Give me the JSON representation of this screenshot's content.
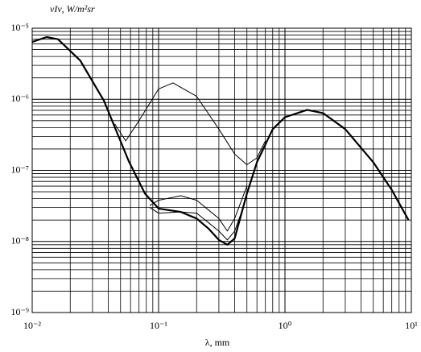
{
  "chart_data": {
    "type": "line",
    "ylabel": "νIν, W/m²sr",
    "xlabel": "λ, mm",
    "xscale": "log",
    "yscale": "log",
    "grid": true,
    "xlim": [
      0.01,
      10
    ],
    "ylim": [
      1e-09,
      1e-05
    ],
    "xticks": [
      {
        "value": 0.01,
        "label": "10⁻²"
      },
      {
        "value": 0.1,
        "label": "10⁻¹"
      },
      {
        "value": 1,
        "label": "10⁰"
      },
      {
        "value": 10,
        "label": "10¹"
      }
    ],
    "yticks": [
      {
        "value": 1e-09,
        "label": "10⁻⁹"
      },
      {
        "value": 1e-08,
        "label": "10⁻⁸"
      },
      {
        "value": 1e-07,
        "label": "10⁻⁷"
      },
      {
        "value": 1e-06,
        "label": "10⁻⁶"
      },
      {
        "value": 1e-05,
        "label": "10⁻⁵"
      }
    ],
    "xminorticks": [
      0.02,
      0.03,
      0.04,
      0.05,
      0.06,
      0.07,
      0.08,
      0.09,
      0.2,
      0.3,
      0.4,
      0.5,
      0.6,
      0.7,
      0.8,
      0.9,
      2,
      3,
      4,
      5,
      6,
      7,
      8,
      9
    ],
    "yminorticks": [
      2e-09,
      3e-09,
      4e-09,
      5e-09,
      6e-09,
      7e-09,
      8e-09,
      9e-09,
      2e-08,
      3e-08,
      4e-08,
      5e-08,
      6e-08,
      7e-08,
      8e-08,
      9e-08,
      2e-07,
      3e-07,
      4e-07,
      5e-07,
      6e-07,
      7e-07,
      8e-07,
      9e-07,
      2e-06,
      3e-06,
      4e-06,
      5e-06,
      6e-06,
      7e-06,
      8e-06,
      9e-06
    ],
    "series": [
      {
        "color": "#000000",
        "width": 2.2,
        "x": [
          0.01,
          0.013,
          0.016,
          0.024,
          0.037,
          0.058,
          0.078,
          0.1,
          0.15,
          0.2,
          0.25,
          0.3,
          0.35,
          0.4,
          0.5,
          0.6,
          0.8,
          1,
          1.5,
          2,
          3,
          5,
          7,
          9.5
        ],
        "values": [
          6.4e-06,
          7.5e-06,
          7e-06,
          3.5e-06,
          9.5e-07,
          1.35e-07,
          4.7e-08,
          2.9e-08,
          2.6e-08,
          2.1e-08,
          1.5e-08,
          1.05e-08,
          9e-09,
          1.1e-08,
          4.7e-08,
          1.3e-07,
          3.8e-07,
          5.6e-07,
          7.1e-07,
          6.4e-07,
          3.8e-07,
          1.3e-07,
          5.3e-08,
          2e-08
        ]
      },
      {
        "color": "#000000",
        "width": 1,
        "x": [
          0.045,
          0.055,
          0.07,
          0.1,
          0.13,
          0.2,
          0.3,
          0.4,
          0.5,
          0.6,
          0.7
        ],
        "values": [
          4.5e-07,
          2.6e-07,
          5e-07,
          1.4e-06,
          1.7e-06,
          1.1e-06,
          3.8e-07,
          1.7e-07,
          1.2e-07,
          1.5e-07,
          2.6e-07
        ]
      },
      {
        "color": "#000000",
        "width": 1,
        "x": [
          0.085,
          0.1,
          0.15,
          0.2,
          0.3,
          0.35,
          0.4,
          0.5
        ],
        "values": [
          3.2e-08,
          3.8e-08,
          4.4e-08,
          3.8e-08,
          2.1e-08,
          1.4e-08,
          2.1e-08,
          6e-08
        ]
      },
      {
        "color": "#000000",
        "width": 1,
        "x": [
          0.085,
          0.1,
          0.15,
          0.2,
          0.3,
          0.35,
          0.4,
          0.45
        ],
        "values": [
          3e-08,
          2.5e-08,
          2.6e-08,
          2.5e-08,
          1.4e-08,
          1.05e-08,
          1.4e-08,
          2.5e-08
        ]
      }
    ]
  }
}
